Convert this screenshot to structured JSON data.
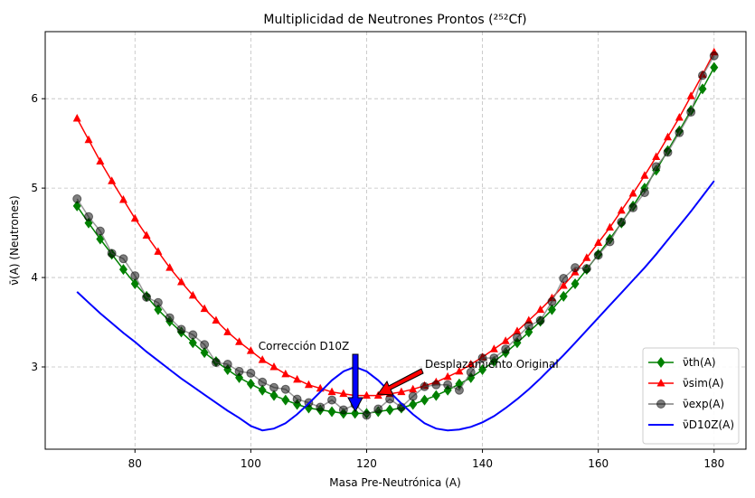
{
  "chart_data": {
    "type": "line",
    "title": "Multiplicidad de Neutrones Prontos (²⁵²Cf)",
    "x_label": "Masa Pre-Neutrónica (A)",
    "y_label": "ν̄(A) (Neutrones)",
    "x": [
      70,
      72,
      74,
      76,
      78,
      80,
      82,
      84,
      86,
      88,
      90,
      92,
      94,
      96,
      98,
      100,
      102,
      104,
      106,
      108,
      110,
      112,
      114,
      116,
      118,
      120,
      122,
      124,
      126,
      128,
      130,
      132,
      134,
      136,
      138,
      140,
      142,
      144,
      146,
      148,
      150,
      152,
      154,
      156,
      158,
      160,
      162,
      164,
      166,
      168,
      170,
      172,
      174,
      176,
      178,
      180
    ],
    "series": [
      {
        "name": "ν̄th(A)",
        "color": "#008000",
        "marker": "diamond",
        "values": [
          4.8,
          4.61,
          4.43,
          4.26,
          4.09,
          3.93,
          3.79,
          3.64,
          3.51,
          3.39,
          3.27,
          3.16,
          3.06,
          2.97,
          2.88,
          2.81,
          2.74,
          2.68,
          2.63,
          2.58,
          2.54,
          2.52,
          2.5,
          2.48,
          2.48,
          2.48,
          2.5,
          2.52,
          2.54,
          2.58,
          2.63,
          2.68,
          2.74,
          2.81,
          2.88,
          2.97,
          3.06,
          3.16,
          3.27,
          3.39,
          3.51,
          3.64,
          3.79,
          3.93,
          4.09,
          4.26,
          4.43,
          4.61,
          4.8,
          5.0,
          5.2,
          5.42,
          5.64,
          5.87,
          6.11,
          6.35
        ]
      },
      {
        "name": "ν̄sim(A)",
        "color": "#ff0000",
        "marker": "triangle",
        "values": [
          5.78,
          5.54,
          5.3,
          5.08,
          4.87,
          4.66,
          4.47,
          4.29,
          4.11,
          3.95,
          3.8,
          3.65,
          3.52,
          3.39,
          3.28,
          3.18,
          3.08,
          3.0,
          2.92,
          2.86,
          2.8,
          2.76,
          2.72,
          2.7,
          2.68,
          2.68,
          2.68,
          2.7,
          2.72,
          2.75,
          2.79,
          2.83,
          2.89,
          2.95,
          3.03,
          3.11,
          3.2,
          3.29,
          3.4,
          3.52,
          3.64,
          3.77,
          3.91,
          4.06,
          4.22,
          4.39,
          4.56,
          4.75,
          4.94,
          5.14,
          5.35,
          5.57,
          5.79,
          6.03,
          6.27,
          6.52
        ]
      },
      {
        "name": "ν̄exp(A)",
        "color": "#808080",
        "marker": "circle",
        "values": [
          4.88,
          4.68,
          4.52,
          4.27,
          4.21,
          4.02,
          3.78,
          3.72,
          3.55,
          3.42,
          3.36,
          3.25,
          3.05,
          3.03,
          2.95,
          2.93,
          2.83,
          2.77,
          2.75,
          2.64,
          2.6,
          2.55,
          2.63,
          2.52,
          2.58,
          2.46,
          2.53,
          2.64,
          2.55,
          2.67,
          2.78,
          2.8,
          2.8,
          2.74,
          2.94,
          3.1,
          3.1,
          3.2,
          3.33,
          3.46,
          3.52,
          3.73,
          3.99,
          4.11,
          4.1,
          4.25,
          4.4,
          4.62,
          4.78,
          4.95,
          5.24,
          5.4,
          5.62,
          5.85,
          6.26,
          6.48
        ]
      },
      {
        "name": "ν̄D10Z(A)",
        "color": "#0000ff",
        "marker": null,
        "values": [
          3.84,
          3.72,
          3.6,
          3.49,
          3.38,
          3.28,
          3.17,
          3.07,
          2.97,
          2.87,
          2.78,
          2.69,
          2.6,
          2.51,
          2.43,
          2.34,
          2.29,
          2.31,
          2.37,
          2.47,
          2.59,
          2.72,
          2.85,
          2.95,
          3.0,
          2.95,
          2.85,
          2.72,
          2.59,
          2.47,
          2.37,
          2.31,
          2.29,
          2.3,
          2.33,
          2.38,
          2.45,
          2.54,
          2.64,
          2.75,
          2.87,
          3.0,
          3.13,
          3.27,
          3.41,
          3.55,
          3.69,
          3.83,
          3.97,
          4.11,
          4.26,
          4.42,
          4.58,
          4.74,
          4.91,
          5.08
        ]
      }
    ],
    "annotations": [
      "Corrección D10Z",
      "Desplazamiento Original"
    ],
    "xlim": [
      64.5,
      185.5
    ],
    "ylim": [
      2.08,
      6.75
    ],
    "xticks": [
      80,
      100,
      120,
      140,
      160,
      180
    ],
    "yticks": [
      3,
      4,
      5,
      6
    ],
    "grid": true,
    "legend": "lower right"
  }
}
